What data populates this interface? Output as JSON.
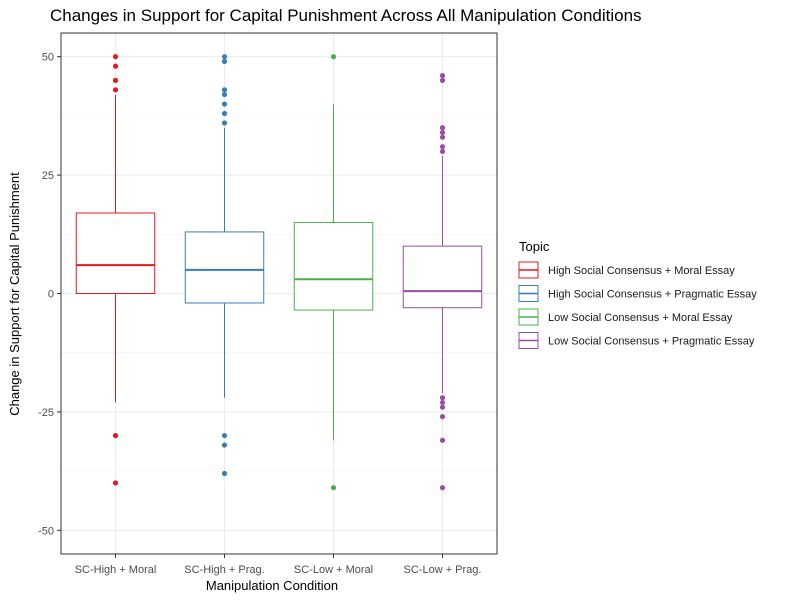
{
  "chart_data": {
    "type": "box",
    "title": "Changes in Support for Capital Punishment Across All Manipulation Conditions",
    "xlabel": "Manipulation Condition",
    "ylabel": "Change in Support for Capital Punishment",
    "ylim": [
      -55,
      55
    ],
    "yticks": [
      -50,
      -25,
      0,
      25,
      50
    ],
    "yticklabels": [
      "-50",
      "-25",
      "0",
      "25",
      "50"
    ],
    "grid": true,
    "legend": {
      "title": "Topic",
      "position": "right"
    },
    "categories": [
      "SC-High + Moral",
      "SC-High + Prag.",
      "SC-Low + Moral",
      "SC-Low + Prag."
    ],
    "series": [
      {
        "name": "High Social Consensus + Moral Essay",
        "color": "#E41A1C",
        "q1": 0,
        "median": 6,
        "q3": 17,
        "whisker_low": -23,
        "whisker_high": 42,
        "outliers": [
          50,
          48,
          45,
          43,
          -30,
          -40
        ]
      },
      {
        "name": "High Social Consensus + Pragmatic Essay",
        "color": "#377EB8",
        "q1": -2,
        "median": 5,
        "q3": 13,
        "whisker_low": -22,
        "whisker_high": 35,
        "outliers": [
          50,
          49,
          43,
          42,
          40,
          38,
          36,
          -30,
          -32,
          -38
        ]
      },
      {
        "name": "Low Social Consensus + Moral Essay",
        "color": "#4DAF4A",
        "q1": -3.5,
        "median": 3,
        "q3": 15,
        "whisker_low": -31,
        "whisker_high": 40,
        "outliers": [
          50,
          -41
        ]
      },
      {
        "name": "Low Social Consensus + Pragmatic Essay",
        "color": "#984EA3",
        "q1": -3,
        "median": 0.5,
        "q3": 10,
        "whisker_low": -21,
        "whisker_high": 29,
        "outliers": [
          46,
          45,
          35,
          34,
          33,
          31,
          30,
          -22,
          -23,
          -24,
          -26,
          -31,
          -41
        ]
      }
    ]
  }
}
